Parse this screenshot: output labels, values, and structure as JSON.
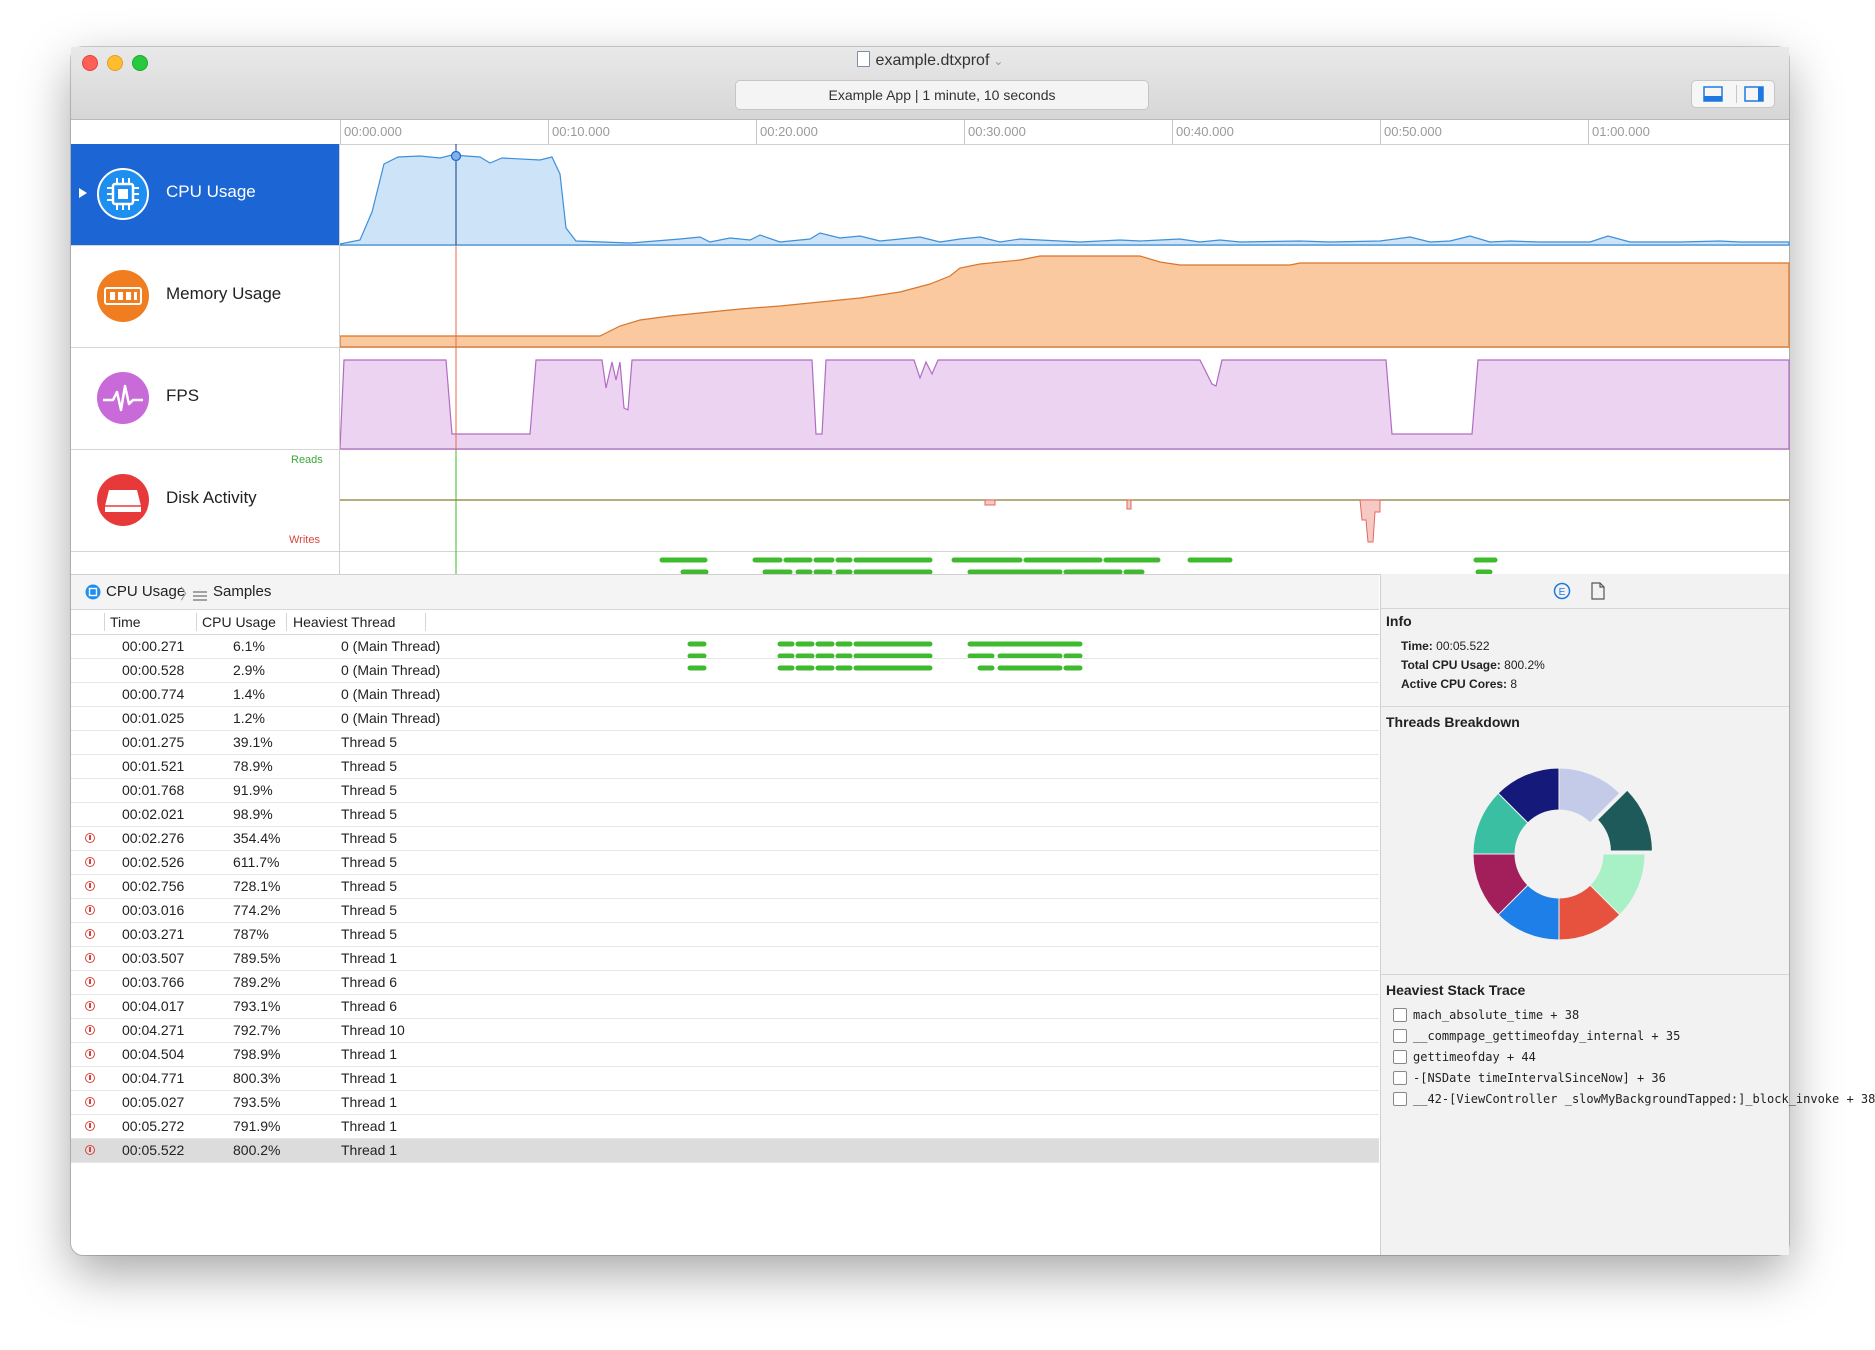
{
  "window": {
    "title": "example.dtxprof",
    "status": "Example App | 1 minute, 10 seconds"
  },
  "ruler": {
    "ticks": [
      "00:00.000",
      "00:10.000",
      "00:20.000",
      "00:30.000",
      "00:40.000",
      "00:50.000",
      "01:00.000"
    ]
  },
  "tracks": [
    {
      "name": "CPU Usage",
      "color": "#1e8ef0",
      "selected": true
    },
    {
      "name": "Memory Usage",
      "color": "#f07d1f",
      "selected": false
    },
    {
      "name": "FPS",
      "color": "#c86ad8",
      "selected": false
    },
    {
      "name": "Disk Activity",
      "color": "#e8393a",
      "selected": false
    }
  ],
  "disk_labels": {
    "reads": "Reads",
    "writes": "Writes"
  },
  "colors": {
    "selection": "#1b66d4",
    "cpu_fill": "#cde3f8",
    "cpu_line": "#3e90d8",
    "mem_fill": "#fbc9a0",
    "mem_line": "#d9762b",
    "fps_fill": "#ecd3f1",
    "fps_line": "#b26bc4",
    "threads": "#3fba2e"
  },
  "pathbar": {
    "root": "CPU Usage",
    "leaf": "Samples"
  },
  "table": {
    "headers": {
      "time": "Time",
      "cpu": "CPU Usage",
      "thread": "Heaviest Thread"
    },
    "rows": [
      {
        "time": "00:00.271",
        "cpu": "6.1%",
        "thread": "0 (Main Thread)",
        "warn": false
      },
      {
        "time": "00:00.528",
        "cpu": "2.9%",
        "thread": "0 (Main Thread)",
        "warn": false
      },
      {
        "time": "00:00.774",
        "cpu": "1.4%",
        "thread": "0 (Main Thread)",
        "warn": false
      },
      {
        "time": "00:01.025",
        "cpu": "1.2%",
        "thread": "0 (Main Thread)",
        "warn": false
      },
      {
        "time": "00:01.275",
        "cpu": "39.1%",
        "thread": "Thread 5",
        "warn": false
      },
      {
        "time": "00:01.521",
        "cpu": "78.9%",
        "thread": "Thread 5",
        "warn": false
      },
      {
        "time": "00:01.768",
        "cpu": "91.9%",
        "thread": "Thread 5",
        "warn": false
      },
      {
        "time": "00:02.021",
        "cpu": "98.9%",
        "thread": "Thread 5",
        "warn": false
      },
      {
        "time": "00:02.276",
        "cpu": "354.4%",
        "thread": "Thread 5",
        "warn": true
      },
      {
        "time": "00:02.526",
        "cpu": "611.7%",
        "thread": "Thread 5",
        "warn": true
      },
      {
        "time": "00:02.756",
        "cpu": "728.1%",
        "thread": "Thread 5",
        "warn": true
      },
      {
        "time": "00:03.016",
        "cpu": "774.2%",
        "thread": "Thread 5",
        "warn": true
      },
      {
        "time": "00:03.271",
        "cpu": "787%",
        "thread": "Thread 5",
        "warn": true
      },
      {
        "time": "00:03.507",
        "cpu": "789.5%",
        "thread": "Thread 1",
        "warn": true
      },
      {
        "time": "00:03.766",
        "cpu": "789.2%",
        "thread": "Thread 6",
        "warn": true
      },
      {
        "time": "00:04.017",
        "cpu": "793.1%",
        "thread": "Thread 6",
        "warn": true
      },
      {
        "time": "00:04.271",
        "cpu": "792.7%",
        "thread": "Thread 10",
        "warn": true
      },
      {
        "time": "00:04.504",
        "cpu": "798.9%",
        "thread": "Thread 1",
        "warn": true
      },
      {
        "time": "00:04.771",
        "cpu": "800.3%",
        "thread": "Thread 1",
        "warn": true
      },
      {
        "time": "00:05.027",
        "cpu": "793.5%",
        "thread": "Thread 1",
        "warn": true
      },
      {
        "time": "00:05.272",
        "cpu": "791.9%",
        "thread": "Thread 1",
        "warn": true
      },
      {
        "time": "00:05.522",
        "cpu": "800.2%",
        "thread": "Thread 1",
        "warn": true,
        "selected": true
      }
    ]
  },
  "inspector": {
    "info_title": "Info",
    "time_label": "Time:",
    "time_value": "00:05.522",
    "cpu_label": "Total CPU Usage:",
    "cpu_value": "800.2%",
    "cores_label": "Active CPU Cores:",
    "cores_value": "8",
    "threads_title": "Threads Breakdown",
    "donut_colors": [
      "#c3cbe8",
      "#1f5a5a",
      "#a8f0c6",
      "#e7523f",
      "#1f7fe8",
      "#a31f5b",
      "#3bbfa2",
      "#151a7a"
    ],
    "stack_title": "Heaviest Stack Trace",
    "stack": [
      "mach_absolute_time + 38",
      "__commpage_gettimeofday_internal + 35",
      "gettimeofday + 44",
      "-[NSDate timeIntervalSinceNow] + 36",
      "__42-[ViewController _slowMyBackgroundTapped:]_block_invoke + 38"
    ]
  }
}
